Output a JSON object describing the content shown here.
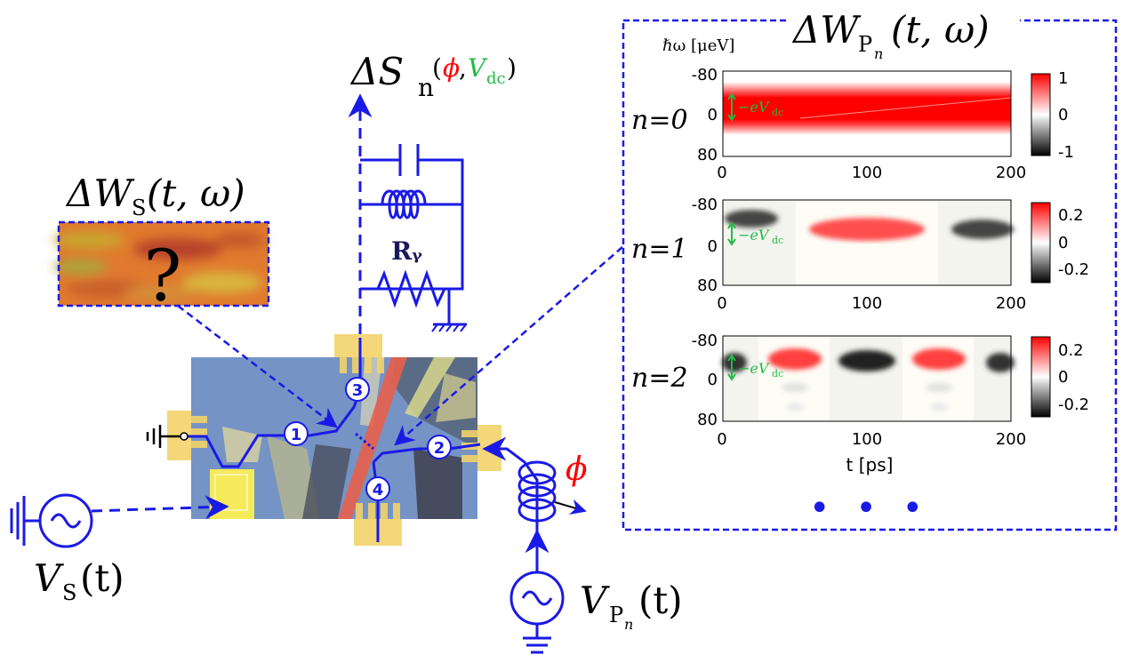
{
  "source_panel": {
    "title_main": "ΔW",
    "title_sub": "S",
    "title_args": "(t, ω)",
    "unknown_symbol": "?"
  },
  "source_voltage": {
    "symbol": "V",
    "sub": "S",
    "args": "(t)"
  },
  "probe_voltage": {
    "symbol": "V",
    "sub": "P",
    "subsub": "n",
    "args": "(t)"
  },
  "phase_label": "ϕ",
  "noise_label": {
    "main": "ΔS",
    "sub": "n",
    "arg_phi": "ϕ",
    "comma": ",",
    "arg_v": "V",
    "arg_v_sub": "dc"
  },
  "resistor_label": "Rᵧ",
  "contacts": [
    "1",
    "2",
    "3",
    "4"
  ],
  "wigner_panel": {
    "title_main": "ΔW",
    "title_sub": "P",
    "title_subsub": "n",
    "title_args": "(t, ω)",
    "ylabel": "ℏω [μeV]",
    "xlabel": "t [ps]",
    "rows": [
      {
        "label": "n=0",
        "colorbar_ticks": [
          "1",
          "0",
          "-1"
        ]
      },
      {
        "label": "n=1",
        "colorbar_ticks": [
          "0.2",
          "0",
          "-0.2"
        ]
      },
      {
        "label": "n=2",
        "colorbar_ticks": [
          "0.2",
          "0",
          "-0.2"
        ]
      }
    ],
    "y_ticks": [
      "-80",
      "0",
      "80"
    ],
    "x_ticks": [
      "0",
      "100",
      "200"
    ],
    "vdc_label": "−eV",
    "vdc_sub": "dc",
    "ellipsis": "• • •"
  },
  "chart_data": {
    "type": "heatmap",
    "xlabel": "t [ps]",
    "ylabel": "ℏω [μeV]",
    "xlim": [
      0,
      200
    ],
    "ylim": [
      -80,
      80
    ],
    "panels": [
      {
        "n": 0,
        "clim": [
          -1,
          1
        ],
        "blobs": [
          {
            "t_start": 0,
            "t_end": 200,
            "omega_center": -40,
            "sign": 1
          }
        ]
      },
      {
        "n": 1,
        "clim": [
          -0.2,
          0.2
        ],
        "blobs": [
          {
            "t_center": 20,
            "sign": -1
          },
          {
            "t_center": 100,
            "sign": 1
          },
          {
            "t_center": 180,
            "sign": -1
          }
        ]
      },
      {
        "n": 2,
        "clim": [
          -0.2,
          0.2
        ],
        "blobs": [
          {
            "t_center": 10,
            "sign": -1
          },
          {
            "t_center": 50,
            "sign": 1
          },
          {
            "t_center": 100,
            "sign": -1
          },
          {
            "t_center": 150,
            "sign": 1
          },
          {
            "t_center": 190,
            "sign": -1
          }
        ]
      }
    ]
  },
  "colors": {
    "circuit_blue": "#1a1ae6",
    "phi_red": "#ff0000",
    "vdc_green": "#22bb44",
    "gate_yellow": "#f2d36b",
    "sample_blue": "#7a98c8",
    "gate_red": "#e8604a"
  }
}
